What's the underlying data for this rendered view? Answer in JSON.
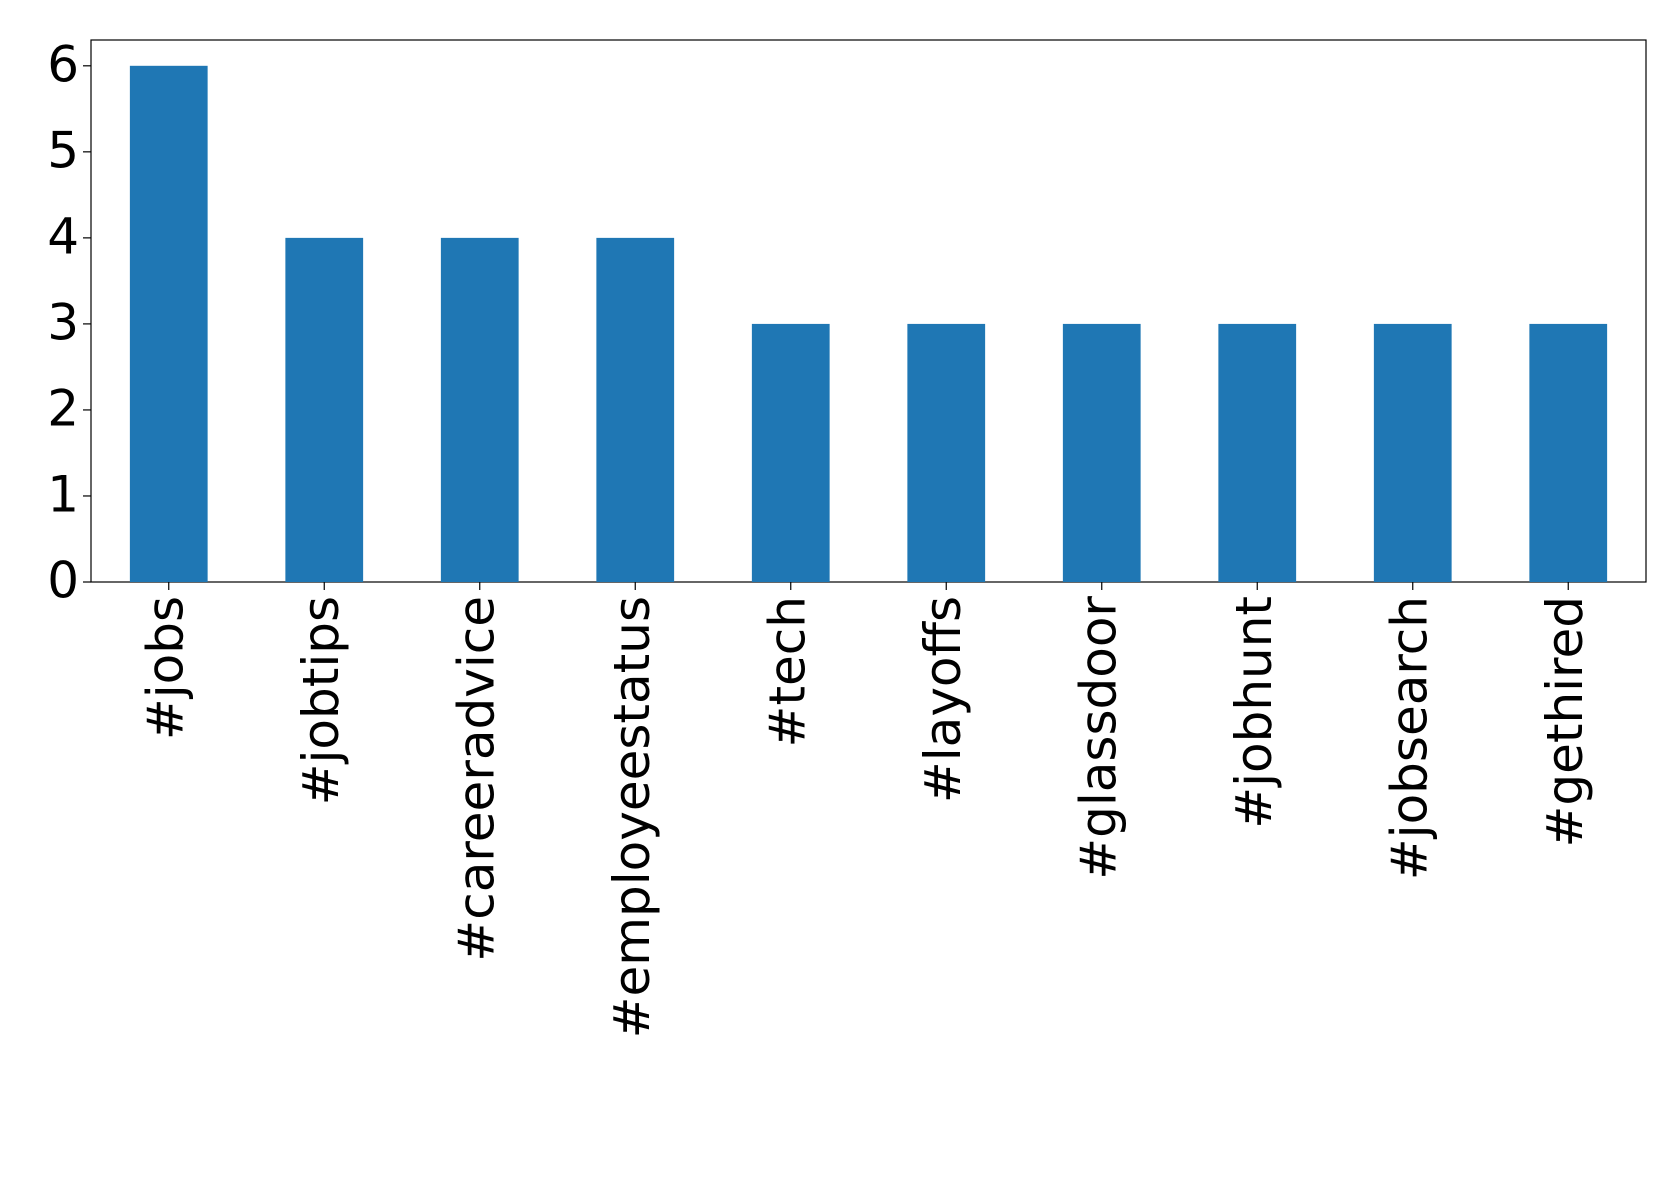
{
  "chart_data": {
    "type": "bar",
    "categories": [
      "#jobs",
      "#jobtips",
      "#careeradvice",
      "#employeestatus",
      "#tech",
      "#layoffs",
      "#glassdoor",
      "#jobhunt",
      "#jobsearch",
      "#gethired"
    ],
    "values": [
      6,
      4,
      4,
      4,
      3,
      3,
      3,
      3,
      3,
      3
    ],
    "color": "#1f77b4",
    "ylim": [
      0,
      6.3
    ],
    "yticks": [
      0,
      1,
      2,
      3,
      4,
      5,
      6
    ],
    "grid": false
  }
}
